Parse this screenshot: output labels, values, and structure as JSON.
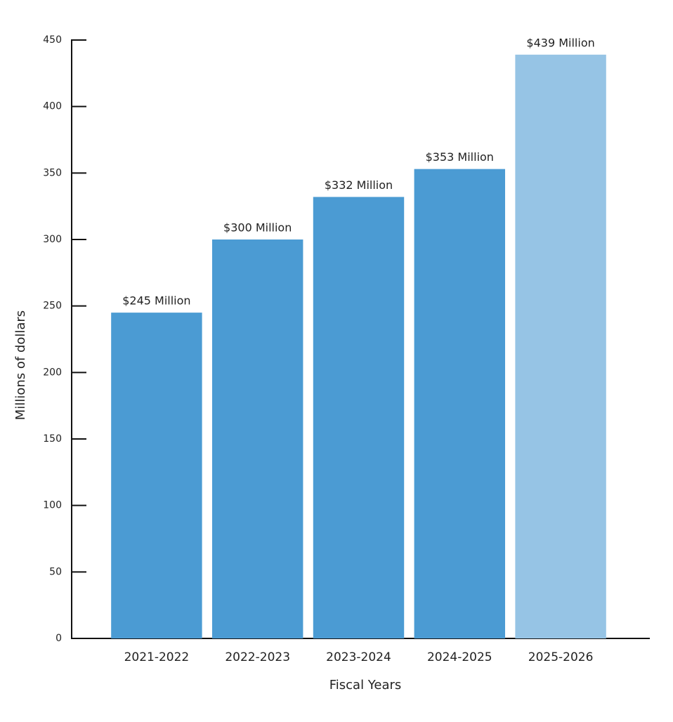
{
  "chart_data": {
    "type": "bar",
    "x_label": "Fiscal Years",
    "y_label": "Millions of dollars",
    "categories": [
      "2021-2022",
      "2022-2023",
      "2023-2024",
      "2024-2025",
      "2025-2026"
    ],
    "values": [
      245,
      300,
      332,
      353,
      439
    ],
    "value_labels": [
      "$245 Million",
      "$300 Million",
      "$332 Million",
      "$353 Million",
      "$439 Million"
    ],
    "colors": [
      "#4b9bd3",
      "#4b9bd3",
      "#4b9bd3",
      "#4b9bd3",
      "#96c4e5"
    ],
    "ylim": [
      0,
      450
    ],
    "yticks": [
      0,
      50,
      100,
      150,
      200,
      250,
      300,
      350,
      400,
      450
    ],
    "grid": false
  }
}
